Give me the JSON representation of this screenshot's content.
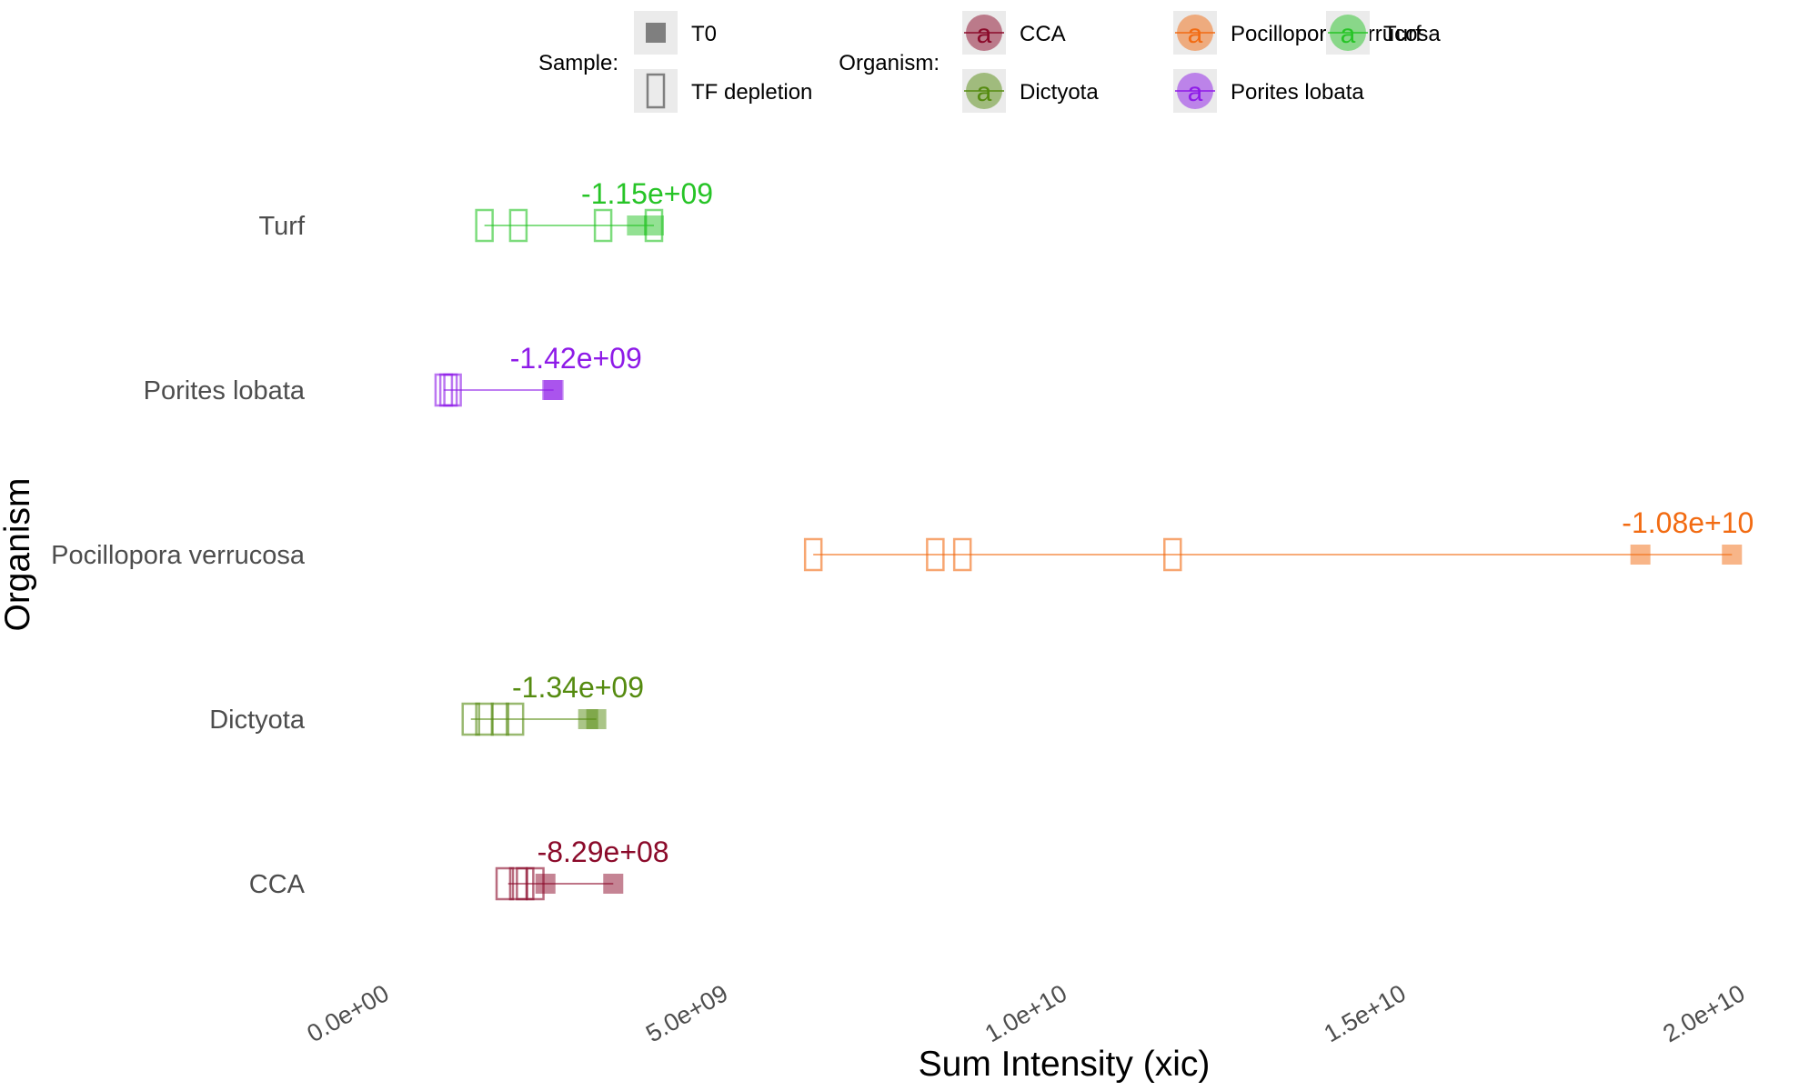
{
  "chart_data": {
    "type": "scatter",
    "xlabel": "Sum Intensity (xic)",
    "ylabel": "Organism",
    "xlim": [
      -800000000,
      21200000000
    ],
    "x_ticks": [
      {
        "value": 0,
        "label": "0.0e+00"
      },
      {
        "value": 5000000000,
        "label": "5.0e+09"
      },
      {
        "value": 10000000000,
        "label": "1.0e+10"
      },
      {
        "value": 15000000000,
        "label": "1.5e+10"
      },
      {
        "value": 20000000000,
        "label": "2.0e+10"
      }
    ],
    "grid": false,
    "legend_position": "top",
    "legend": {
      "sample_title": "Sample:",
      "sample_entries": [
        {
          "label": "T0",
          "shape": "filled-square"
        },
        {
          "label": "TF depletion",
          "shape": "open-square"
        }
      ],
      "organism_title": "Organism:",
      "organism_glyph": "a",
      "organism_entries": [
        {
          "label": "CCA",
          "color": "#8B0A2A"
        },
        {
          "label": "Dictyota",
          "color": "#558B10"
        },
        {
          "label": "Pocillopora verrucosa",
          "color": "#F26B12"
        },
        {
          "label": "Porites lobata",
          "color": "#8E1BE8"
        },
        {
          "label": "Turf",
          "color": "#27C427"
        }
      ]
    },
    "categories": [
      "Turf",
      "Porites lobata",
      "Pocillopora verrucosa",
      "Dictyota",
      "CCA"
    ],
    "series": [
      {
        "name": "Turf",
        "color": "#27C427",
        "T0": [
          3900000000,
          4150000000
        ],
        "TF_depletion": [
          1650000000,
          2150000000,
          3400000000,
          4150000000
        ],
        "segment": [
          1650000000,
          4150000000
        ],
        "difference_label": "-1.15e+09",
        "label_x": 4050000000
      },
      {
        "name": "Porites lobata",
        "color": "#8E1BE8",
        "T0": [
          2650000000,
          2670000000
        ],
        "TF_depletion": [
          1050000000,
          1120000000,
          1180000000
        ],
        "segment": [
          1050000000,
          2670000000
        ],
        "difference_label": "-1.42e+09",
        "label_x": 3000000000
      },
      {
        "name": "Pocillopora verrucosa",
        "color": "#F26B12",
        "T0": [
          18700000000,
          20050000000
        ],
        "TF_depletion": [
          6500000000,
          8300000000,
          8700000000,
          11800000000
        ],
        "segment": [
          6500000000,
          20050000000
        ],
        "difference_label": "-1.08e+10",
        "label_x": 19400000000
      },
      {
        "name": "Dictyota",
        "color": "#558B10",
        "T0": [
          3180000000,
          3300000000
        ],
        "TF_depletion": [
          1450000000,
          1650000000,
          1880000000,
          2100000000
        ],
        "segment": [
          1450000000,
          3300000000
        ],
        "difference_label": "-1.34e+09",
        "label_x": 3030000000
      },
      {
        "name": "CCA",
        "color": "#8B0A2A",
        "T0": [
          2550000000,
          3550000000
        ],
        "TF_depletion": [
          1950000000,
          2150000000,
          2250000000,
          2400000000
        ],
        "segment": [
          2000000000,
          3550000000
        ],
        "difference_label": "-8.29e+08",
        "label_x": 3400000000
      }
    ]
  }
}
